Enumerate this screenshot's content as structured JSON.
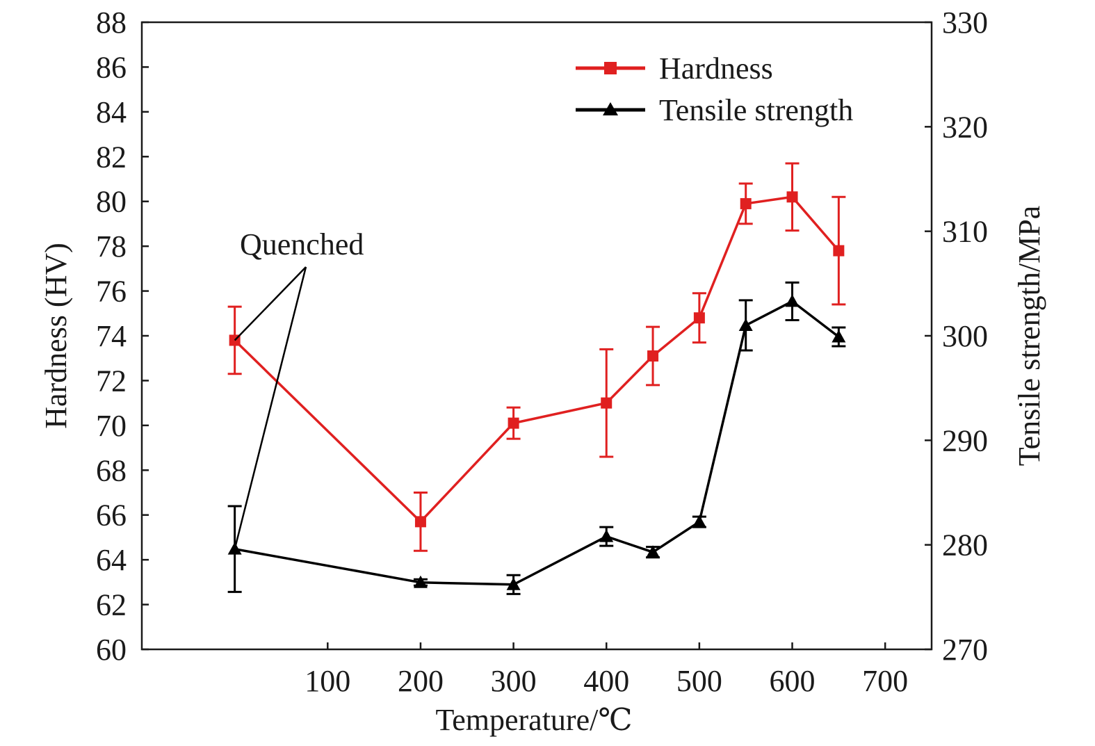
{
  "chart_data": {
    "type": "line",
    "xlabel": "Temperature/℃",
    "ylabel": "Hardness (HV)",
    "y2label": "Tensile strength/MPa",
    "xlim": [
      -100,
      750
    ],
    "ylim": [
      60,
      88
    ],
    "y2lim": [
      270,
      330
    ],
    "xticks": [
      100,
      200,
      300,
      400,
      500,
      600,
      700
    ],
    "yticks": [
      60,
      62,
      64,
      66,
      68,
      70,
      72,
      74,
      76,
      78,
      80,
      82,
      84,
      86,
      88
    ],
    "y2ticks": [
      270,
      280,
      290,
      300,
      310,
      320,
      330
    ],
    "grid": false,
    "legend_position": "top-right",
    "annotation": {
      "text": "Quenched",
      "x": 0
    },
    "series": [
      {
        "name": "Hardness",
        "axis": "left",
        "color": "#e02020",
        "marker": "square",
        "x": [
          0,
          200,
          300,
          400,
          450,
          500,
          550,
          600,
          650
        ],
        "y": [
          73.8,
          65.7,
          70.1,
          71.0,
          73.1,
          74.8,
          79.9,
          80.2,
          77.8
        ],
        "err": [
          1.5,
          1.3,
          0.7,
          2.4,
          1.3,
          1.1,
          0.9,
          1.5,
          2.4
        ]
      },
      {
        "name": "Tensile strength",
        "axis": "right",
        "color": "#000000",
        "marker": "triangle",
        "x": [
          0,
          200,
          300,
          400,
          450,
          500,
          550,
          600,
          650
        ],
        "y": [
          279.6,
          276.4,
          276.2,
          280.8,
          279.3,
          282.2,
          301.0,
          303.3,
          299.9
        ],
        "err": [
          4.1,
          0.3,
          0.9,
          0.9,
          0.5,
          0.5,
          2.4,
          1.8,
          0.9
        ]
      }
    ]
  }
}
